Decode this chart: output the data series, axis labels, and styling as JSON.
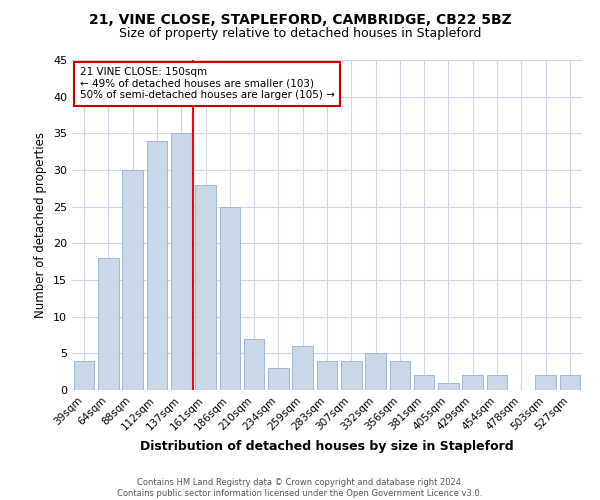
{
  "title_line1": "21, VINE CLOSE, STAPLEFORD, CAMBRIDGE, CB22 5BZ",
  "title_line2": "Size of property relative to detached houses in Stapleford",
  "xlabel": "Distribution of detached houses by size in Stapleford",
  "ylabel": "Number of detached properties",
  "categories": [
    "39sqm",
    "64sqm",
    "88sqm",
    "112sqm",
    "137sqm",
    "161sqm",
    "186sqm",
    "210sqm",
    "234sqm",
    "259sqm",
    "283sqm",
    "307sqm",
    "332sqm",
    "356sqm",
    "381sqm",
    "405sqm",
    "429sqm",
    "454sqm",
    "478sqm",
    "503sqm",
    "527sqm"
  ],
  "values": [
    4,
    18,
    30,
    34,
    35,
    28,
    25,
    7,
    3,
    6,
    4,
    4,
    5,
    4,
    2,
    1,
    2,
    2,
    0,
    2,
    2
  ],
  "bar_color": "#c8d8e8",
  "bar_edge_color": "#a0b8d0",
  "red_line_x": 4.5,
  "ylim": [
    0,
    45
  ],
  "yticks": [
    0,
    5,
    10,
    15,
    20,
    25,
    30,
    35,
    40,
    45
  ],
  "annotation_text_line1": "21 VINE CLOSE: 150sqm",
  "annotation_text_line2": "← 49% of detached houses are smaller (103)",
  "annotation_text_line3": "50% of semi-detached houses are larger (105) →",
  "annotation_box_color": "#ffffff",
  "annotation_box_edge_color": "#cc0000",
  "footer_line1": "Contains HM Land Registry data © Crown copyright and database right 2024.",
  "footer_line2": "Contains public sector information licensed under the Open Government Licence v3.0.",
  "background_color": "#ffffff",
  "grid_color": "#d0d8e8"
}
